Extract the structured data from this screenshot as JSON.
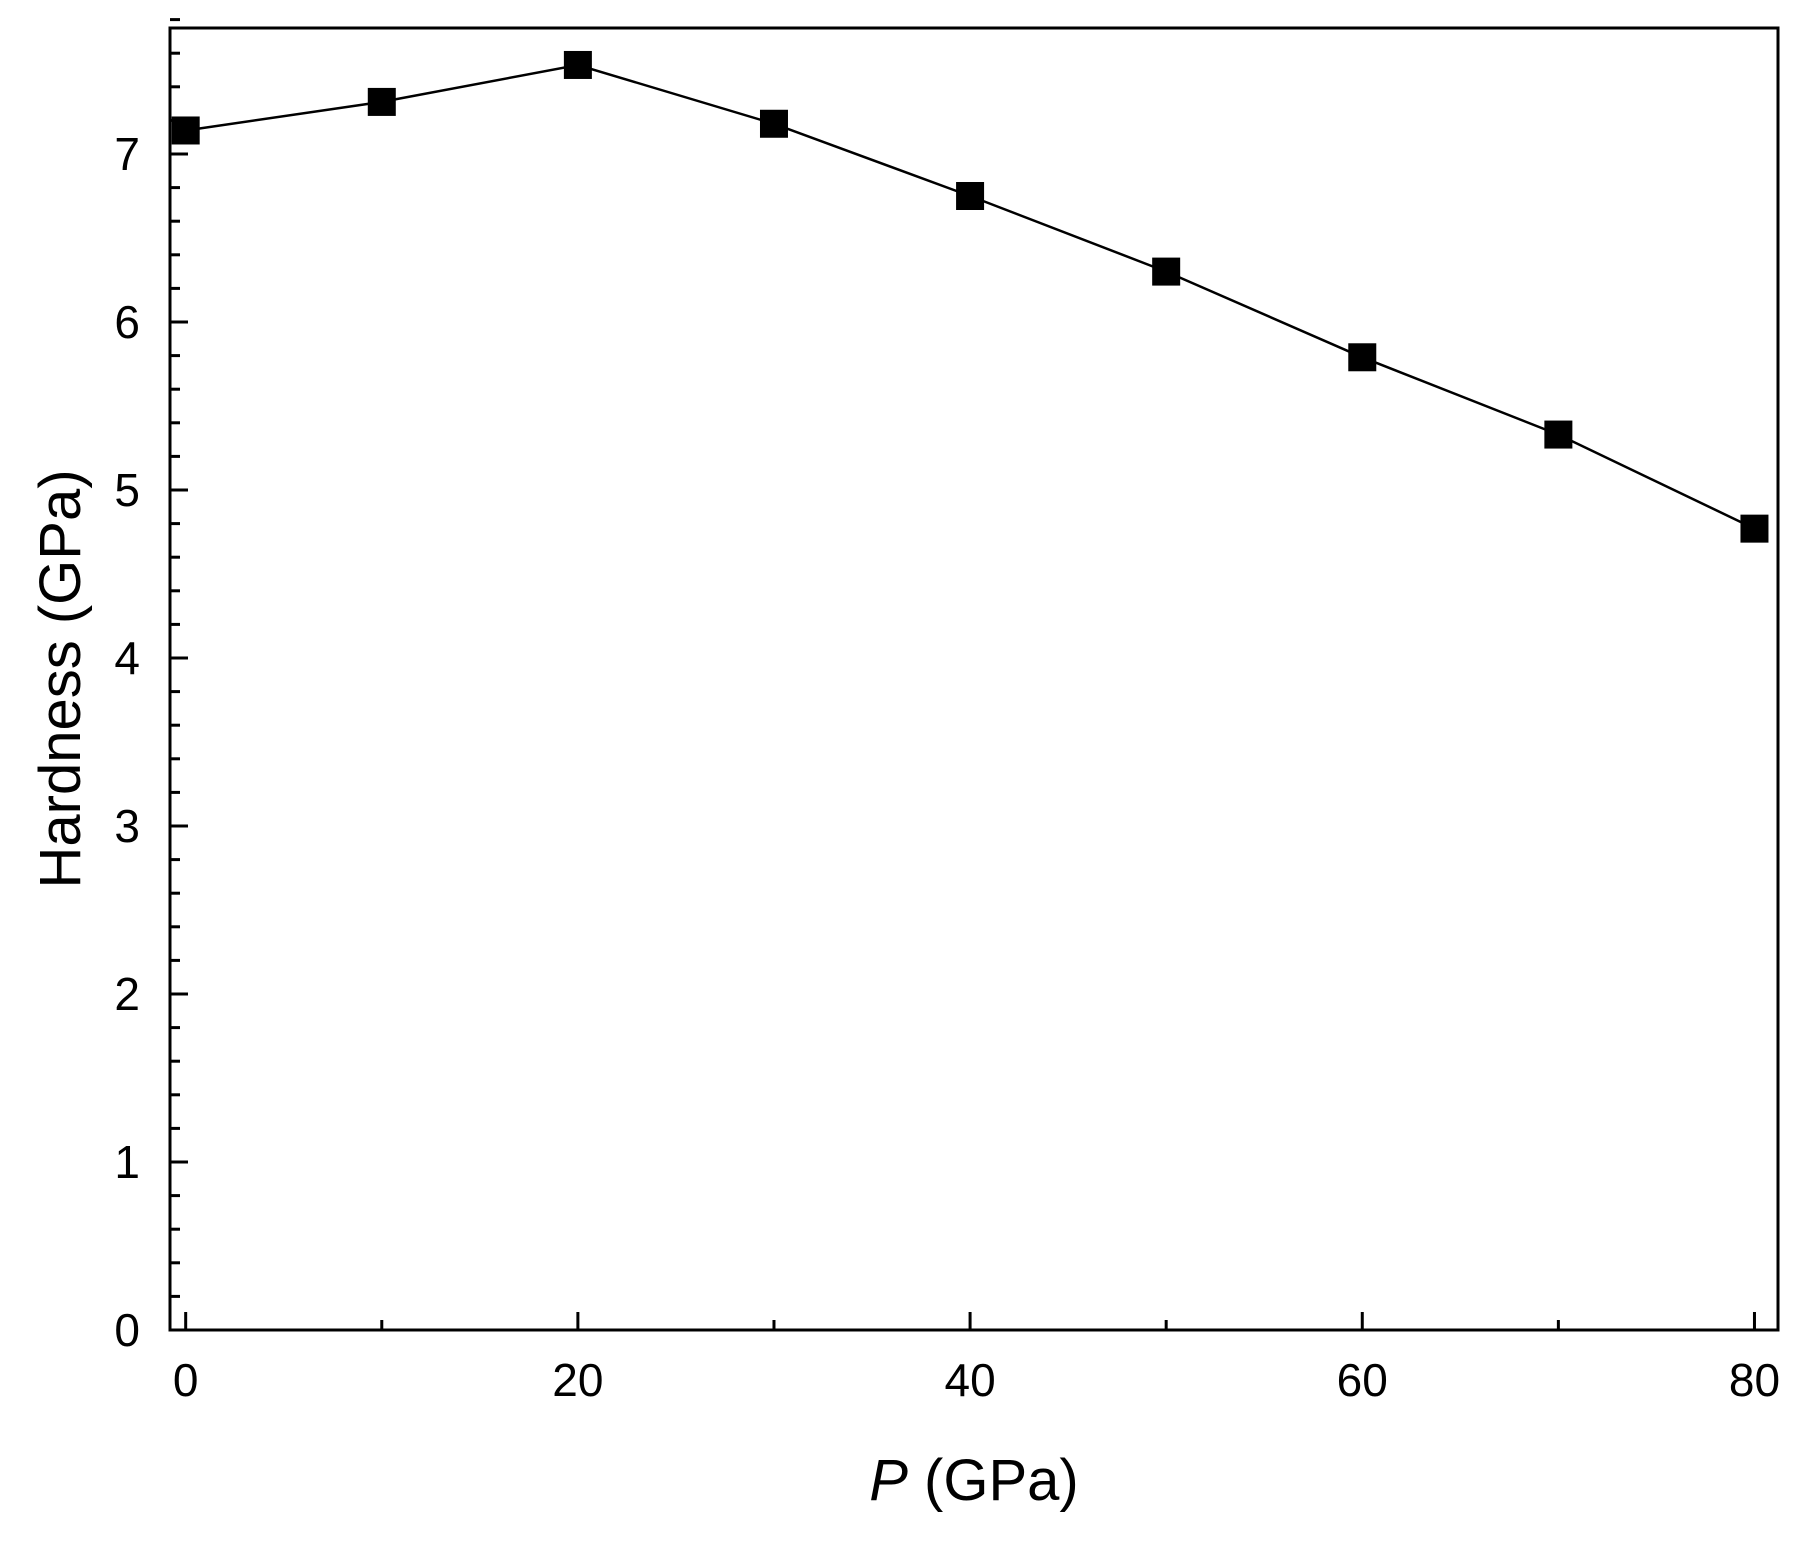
{
  "chart_data": {
    "type": "line",
    "xlabel": {
      "symbol": "P",
      "unit": " (GPa)"
    },
    "ylabel": "Hardness (GPa)",
    "xlim": [
      -0.8,
      81.2
    ],
    "ylim": [
      0,
      7.75
    ],
    "x_ticks": [
      "0",
      "20",
      "40",
      "60",
      "80"
    ],
    "x_tick_values": [
      0,
      20,
      40,
      60,
      80
    ],
    "x_minor_tick_values": [
      10,
      30,
      50,
      70
    ],
    "y_ticks": [
      "0",
      "1",
      "2",
      "3",
      "4",
      "5",
      "6",
      "7"
    ],
    "y_tick_values": [
      0,
      1,
      2,
      3,
      4,
      5,
      6,
      7
    ],
    "y_minor_step": 0.2,
    "grid": false,
    "marker": "filled-square",
    "color": "#000000",
    "series": [
      {
        "x": [
          0,
          10,
          20,
          30,
          40,
          50,
          60,
          70,
          80
        ],
        "y": [
          7.14,
          7.31,
          7.53,
          7.18,
          6.75,
          6.3,
          5.79,
          5.33,
          4.77
        ]
      }
    ]
  }
}
